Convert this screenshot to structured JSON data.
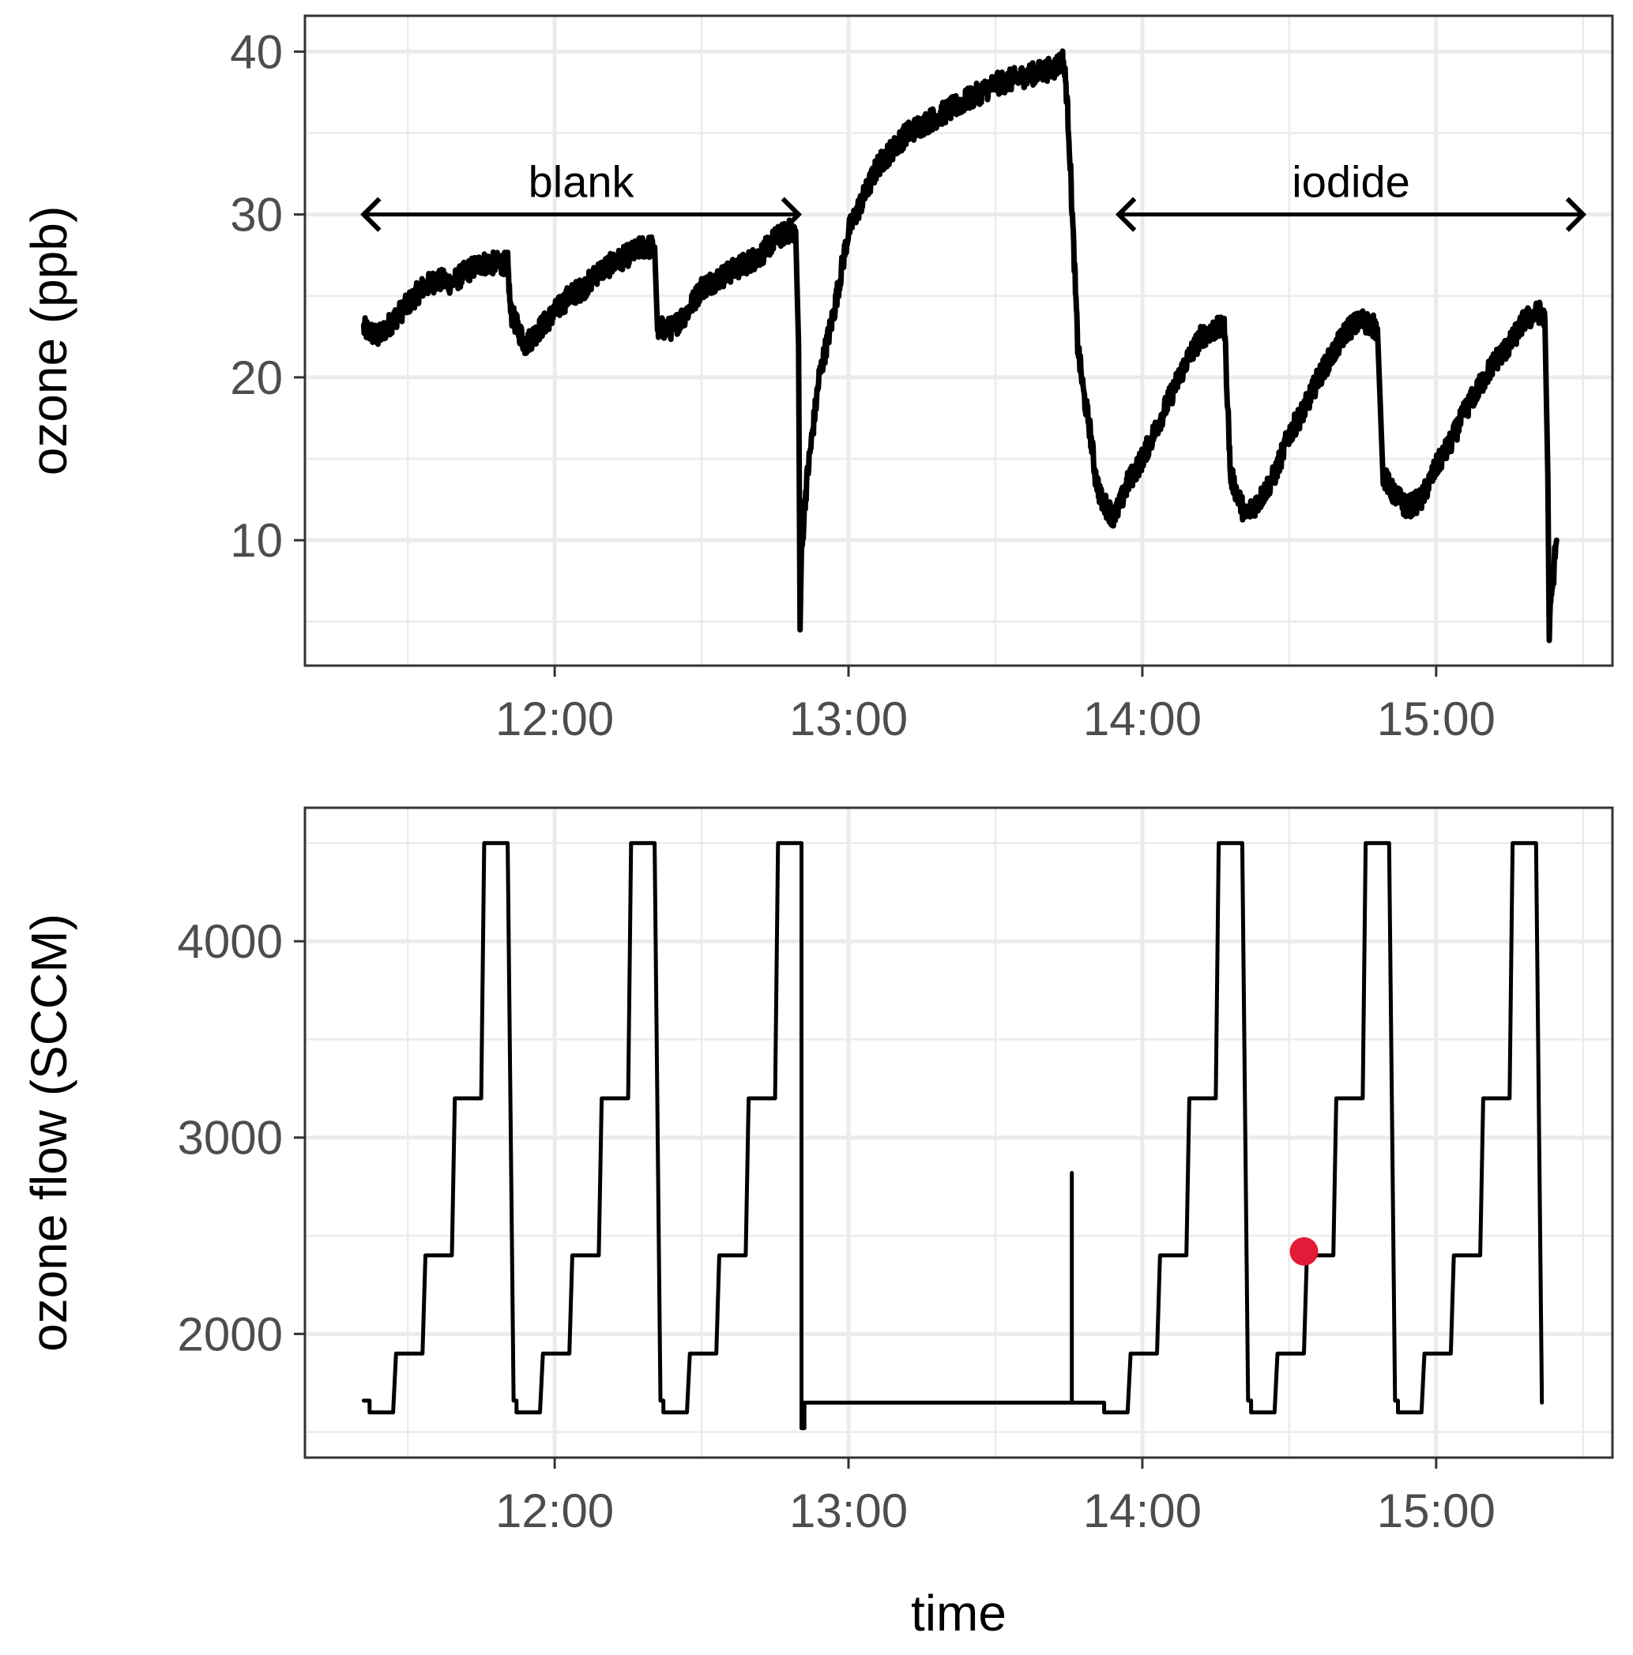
{
  "chart_data": [
    {
      "type": "line",
      "ylabel": "ozone (ppb)",
      "xlabel": "",
      "x_axis": "time (hour, decimal)",
      "xlim": [
        11.15,
        15.6
      ],
      "ylim": [
        2.3,
        42.2
      ],
      "x_ticks": [
        12,
        13,
        14,
        15
      ],
      "x_tick_labels": [
        "12:00",
        "13:00",
        "14:00",
        "15:00"
      ],
      "y_ticks": [
        10,
        20,
        30,
        40
      ],
      "y_tick_labels": [
        "10",
        "20",
        "30",
        "40"
      ],
      "grid": true,
      "colors": {
        "line": "#000000",
        "grid": "#ebebeb",
        "frame": "#333333"
      },
      "series": [
        {
          "x": [
            11.35,
            11.4,
            11.45,
            11.5,
            11.55,
            11.6,
            11.65,
            11.7,
            11.75,
            11.8,
            11.84,
            11.85,
            11.9,
            11.95,
            12.0,
            12.05,
            12.1,
            12.15,
            12.2,
            12.25,
            12.3,
            12.34,
            12.35,
            12.4,
            12.45,
            12.5,
            12.55,
            12.6,
            12.65,
            12.7,
            12.75,
            12.8,
            12.82,
            12.83,
            12.835,
            12.84,
            12.85,
            12.86,
            12.9,
            12.95,
            13.0,
            13.05,
            13.1,
            13.15,
            13.2,
            13.3,
            13.4,
            13.5,
            13.6,
            13.7,
            13.73,
            13.74,
            13.75,
            13.78,
            13.8,
            13.82,
            13.84,
            13.86,
            13.88,
            13.9,
            13.92,
            13.95,
            14.0,
            14.05,
            14.1,
            14.15,
            14.2,
            14.25,
            14.28,
            14.3,
            14.32,
            14.35,
            14.4,
            14.45,
            14.5,
            14.55,
            14.6,
            14.65,
            14.7,
            14.75,
            14.8,
            14.82,
            14.85,
            14.9,
            14.95,
            15.0,
            15.05,
            15.1,
            15.15,
            15.2,
            15.25,
            15.3,
            15.35,
            15.37,
            15.38,
            15.385,
            15.39,
            15.4,
            15.405,
            15.41
          ],
          "y": [
            23,
            22.5,
            23.5,
            24.5,
            25.5,
            26,
            25.8,
            26.5,
            27,
            27,
            27,
            24,
            22,
            23,
            24,
            25,
            25.5,
            26.5,
            27,
            27.5,
            28,
            28,
            23,
            23,
            24,
            25.5,
            26,
            26.5,
            27,
            27.5,
            28.5,
            29,
            29,
            22,
            4.5,
            9,
            12,
            14,
            20,
            24,
            29,
            31,
            33,
            34,
            35,
            36,
            37,
            38,
            38.5,
            39,
            39.5,
            38,
            35,
            22,
            19,
            17,
            14,
            12.5,
            12,
            11.5,
            12,
            13.5,
            15,
            17,
            19,
            21,
            22.5,
            23,
            23,
            14,
            13,
            11.5,
            12.5,
            14,
            16.5,
            18,
            20,
            21.5,
            23,
            23.5,
            23,
            14,
            13,
            12,
            12.5,
            14.5,
            16,
            18,
            19.5,
            21,
            22,
            23.5,
            24,
            23.5,
            14,
            4.5,
            6,
            8,
            9.5,
            10
          ],
          "noise": 0.7
        }
      ],
      "annotations": [
        {
          "text": "blank",
          "from_x": 11.35,
          "to_x": 12.83,
          "y": 30,
          "arrow": "both"
        },
        {
          "text": "iodide",
          "from_x": 13.92,
          "to_x": 15.5,
          "y": 30,
          "arrow": "both"
        }
      ]
    },
    {
      "type": "line",
      "ylabel": "ozone flow (SCCM)",
      "xlabel": "time",
      "x_axis": "time (hour, decimal)",
      "xlim": [
        11.15,
        15.6
      ],
      "ylim": [
        1370,
        4680
      ],
      "x_ticks": [
        12,
        13,
        14,
        15
      ],
      "x_tick_labels": [
        "12:00",
        "13:00",
        "14:00",
        "15:00"
      ],
      "y_ticks": [
        2000,
        3000,
        4000
      ],
      "y_tick_labels": [
        "2000",
        "3000",
        "4000"
      ],
      "grid": true,
      "colors": {
        "line": "#000000",
        "point": "#e31a38",
        "grid": "#ebebeb",
        "frame": "#333333"
      },
      "series": [
        {
          "x": [
            11.35,
            11.37,
            11.37,
            11.45,
            11.46,
            11.55,
            11.56,
            11.65,
            11.66,
            11.75,
            11.76,
            11.84,
            11.86,
            11.87,
            11.87,
            11.95,
            11.96,
            12.05,
            12.06,
            12.15,
            12.16,
            12.25,
            12.26,
            12.34,
            12.36,
            12.37,
            12.37,
            12.45,
            12.46,
            12.55,
            12.56,
            12.65,
            12.66,
            12.75,
            12.76,
            12.84,
            12.84,
            12.85,
            12.85,
            13.76,
            13.76,
            13.76,
            13.76,
            13.86,
            13.87,
            13.87,
            13.95,
            13.96,
            14.05,
            14.06,
            14.15,
            14.16,
            14.25,
            14.26,
            14.34,
            14.36,
            14.37,
            14.37,
            14.45,
            14.46,
            14.55,
            14.56,
            14.65,
            14.66,
            14.75,
            14.76,
            14.84,
            14.86,
            14.87,
            14.87,
            14.95,
            14.96,
            15.05,
            15.06,
            15.15,
            15.16,
            15.25,
            15.26,
            15.34,
            15.36
          ],
          "y": [
            1660,
            1660,
            1600,
            1600,
            1900,
            1900,
            2400,
            2400,
            3200,
            3200,
            4500,
            4500,
            1660,
            1660,
            1600,
            1600,
            1900,
            1900,
            2400,
            2400,
            3200,
            3200,
            4500,
            4500,
            1660,
            1660,
            1600,
            1600,
            1900,
            1900,
            2400,
            2400,
            3200,
            3200,
            4500,
            4500,
            1520,
            1520,
            1650,
            1650,
            2820,
            2820,
            1650,
            1650,
            1650,
            1600,
            1600,
            1900,
            1900,
            2400,
            2400,
            3200,
            3200,
            4500,
            4500,
            1660,
            1660,
            1600,
            1600,
            1900,
            1900,
            2400,
            2400,
            3200,
            3200,
            4500,
            4500,
            1660,
            1660,
            1600,
            1600,
            1900,
            1900,
            2400,
            2400,
            3200,
            3200,
            4500,
            4500,
            1650
          ]
        }
      ],
      "points": [
        {
          "x": 14.55,
          "y": 2420
        }
      ]
    }
  ]
}
